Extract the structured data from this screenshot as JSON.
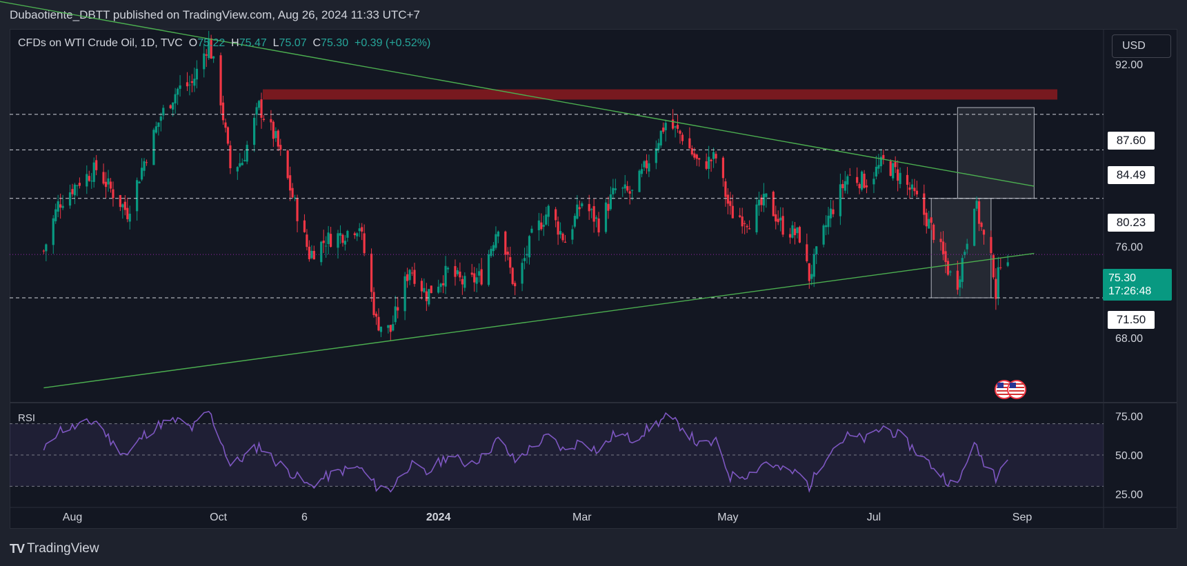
{
  "header": {
    "publisher": "Dubaotiente_DBTT published on TradingView.com, Aug 26, 2024 11:33 UTC+7"
  },
  "legend": {
    "symbol": "CFDs on WTI Crude Oil, 1D, TVC",
    "o_label": "O",
    "o_value": "75.22",
    "h_label": "H",
    "h_value": "75.47",
    "l_label": "L",
    "l_value": "75.07",
    "c_label": "C",
    "c_value": "75.30",
    "change": "+0.39 (+0.52%)"
  },
  "currency_button": "USD",
  "price_tag": {
    "price": "75.30",
    "countdown": "17:26:48"
  },
  "level_labels": [
    "87.60",
    "84.49",
    "80.23",
    "71.50"
  ],
  "rsi": {
    "label": "RSI"
  },
  "footer": {
    "brand": "TradingView"
  },
  "colors": {
    "up": "#089981",
    "down": "#f23645",
    "trendline": "#4caf50",
    "resistance_zone": "#8b1a1f",
    "rsi_line": "#7e57c2"
  },
  "chart_data": [
    {
      "type": "candlestick",
      "title": "CFDs on WTI Crude Oil, 1D, TVC",
      "x_ticks": [
        "Aug",
        "Oct",
        "6",
        "2024",
        "Mar",
        "May",
        "Jul",
        "Sep"
      ],
      "y_ticks": [
        92.0,
        76.0,
        68.0
      ],
      "y_tick_labels": [
        "92.00",
        "76.00",
        "68.00"
      ],
      "ylim": [
        62.3,
        95.1
      ],
      "horizontal_levels": [
        87.6,
        84.49,
        80.23,
        71.5
      ],
      "last_price": 75.3,
      "resistance_zone": [
        88.9,
        89.8
      ],
      "descending_trendline": {
        "from": [
          "2023-06-08",
          98.4
        ],
        "to": [
          "2024-09-06",
          81.3
        ]
      },
      "ascending_trendline": {
        "from": [
          "2023-07-20",
          63.6
        ],
        "to": [
          "2024-09-06",
          75.4
        ]
      },
      "boxes": [
        {
          "from": "2024-08-05",
          "to": "2024-09-06",
          "low": 80.23,
          "high": 88.2
        },
        {
          "from": "2024-07-25",
          "to": "2024-08-19",
          "low": 71.5,
          "high": 80.23
        }
      ],
      "close_series": [
        [
          "2023-07-20",
          75.6
        ],
        [
          "2023-07-26",
          79.7
        ],
        [
          "2023-08-03",
          81.6
        ],
        [
          "2023-08-11",
          82.8
        ],
        [
          "2023-08-18",
          80.7
        ],
        [
          "2023-08-24",
          79.0
        ],
        [
          "2023-08-31",
          83.5
        ],
        [
          "2023-09-07",
          87.5
        ],
        [
          "2023-09-14",
          89.8
        ],
        [
          "2023-09-20",
          90.3
        ],
        [
          "2023-09-27",
          94.0
        ],
        [
          "2023-10-02",
          88.9
        ],
        [
          "2023-10-06",
          82.9
        ],
        [
          "2023-10-11",
          83.5
        ],
        [
          "2023-10-18",
          88.3
        ],
        [
          "2023-10-25",
          85.4
        ],
        [
          "2023-11-01",
          80.4
        ],
        [
          "2023-11-08",
          75.3
        ],
        [
          "2023-11-15",
          76.6
        ],
        [
          "2023-11-22",
          77.1
        ],
        [
          "2023-11-29",
          77.9
        ],
        [
          "2023-12-06",
          69.4
        ],
        [
          "2023-12-12",
          68.6
        ],
        [
          "2023-12-20",
          74.2
        ],
        [
          "2023-12-27",
          71.8
        ],
        [
          "2024-01-05",
          73.8
        ],
        [
          "2024-01-12",
          72.7
        ],
        [
          "2024-01-19",
          73.4
        ],
        [
          "2024-01-26",
          78.0
        ],
        [
          "2024-02-02",
          72.3
        ],
        [
          "2024-02-09",
          76.8
        ],
        [
          "2024-02-16",
          79.2
        ],
        [
          "2024-02-23",
          76.5
        ],
        [
          "2024-03-01",
          79.9
        ],
        [
          "2024-03-08",
          78.0
        ],
        [
          "2024-03-15",
          81.0
        ],
        [
          "2024-03-22",
          80.6
        ],
        [
          "2024-03-28",
          83.2
        ],
        [
          "2024-04-05",
          86.9
        ],
        [
          "2024-04-12",
          85.7
        ],
        [
          "2024-04-19",
          83.1
        ],
        [
          "2024-04-26",
          83.8
        ],
        [
          "2024-05-02",
          79.0
        ],
        [
          "2024-05-10",
          78.3
        ],
        [
          "2024-05-17",
          80.1
        ],
        [
          "2024-05-24",
          77.7
        ],
        [
          "2024-05-31",
          76.9
        ],
        [
          "2024-06-04",
          73.3
        ],
        [
          "2024-06-12",
          78.5
        ],
        [
          "2024-06-20",
          82.2
        ],
        [
          "2024-06-28",
          81.7
        ],
        [
          "2024-07-05",
          83.4
        ],
        [
          "2024-07-12",
          82.2
        ],
        [
          "2024-07-19",
          80.1
        ],
        [
          "2024-07-26",
          77.2
        ],
        [
          "2024-08-02",
          73.5
        ],
        [
          "2024-08-05",
          72.9
        ],
        [
          "2024-08-09",
          76.8
        ],
        [
          "2024-08-12",
          80.1
        ],
        [
          "2024-08-16",
          76.7
        ],
        [
          "2024-08-20",
          74.0
        ],
        [
          "2024-08-21",
          71.9
        ],
        [
          "2024-08-23",
          74.9
        ],
        [
          "2024-08-26",
          75.3
        ]
      ]
    },
    {
      "type": "line",
      "title": "RSI",
      "y_ticks": [
        75.0,
        50.0,
        25.0
      ],
      "y_tick_labels": [
        "75.00",
        "50.00",
        "25.00"
      ],
      "ylim": [
        20,
        80
      ],
      "band": [
        30,
        70
      ],
      "series": [
        {
          "values": [
            [
              "2023-07-20",
              52
            ],
            [
              "2023-07-26",
              66
            ],
            [
              "2023-08-03",
              68
            ],
            [
              "2023-08-11",
              72
            ],
            [
              "2023-08-18",
              57
            ],
            [
              "2023-08-24",
              50
            ],
            [
              "2023-08-31",
              63
            ],
            [
              "2023-09-07",
              70
            ],
            [
              "2023-09-14",
              72
            ],
            [
              "2023-09-20",
              67
            ],
            [
              "2023-09-27",
              78
            ],
            [
              "2023-10-02",
              60
            ],
            [
              "2023-10-06",
              43
            ],
            [
              "2023-10-11",
              48
            ],
            [
              "2023-10-18",
              56
            ],
            [
              "2023-10-25",
              46
            ],
            [
              "2023-11-01",
              38
            ],
            [
              "2023-11-08",
              30
            ],
            [
              "2023-11-15",
              36
            ],
            [
              "2023-11-22",
              40
            ],
            [
              "2023-11-29",
              42
            ],
            [
              "2023-12-06",
              30
            ],
            [
              "2023-12-12",
              28
            ],
            [
              "2023-12-20",
              44
            ],
            [
              "2023-12-27",
              38
            ],
            [
              "2024-01-05",
              50
            ],
            [
              "2024-01-12",
              45
            ],
            [
              "2024-01-19",
              48
            ],
            [
              "2024-01-26",
              60
            ],
            [
              "2024-02-02",
              46
            ],
            [
              "2024-02-09",
              55
            ],
            [
              "2024-02-16",
              62
            ],
            [
              "2024-02-23",
              52
            ],
            [
              "2024-03-01",
              60
            ],
            [
              "2024-03-08",
              52
            ],
            [
              "2024-03-15",
              64
            ],
            [
              "2024-03-22",
              60
            ],
            [
              "2024-03-28",
              66
            ],
            [
              "2024-04-05",
              74
            ],
            [
              "2024-04-12",
              68
            ],
            [
              "2024-04-19",
              56
            ],
            [
              "2024-04-26",
              58
            ],
            [
              "2024-05-02",
              36
            ],
            [
              "2024-05-10",
              38
            ],
            [
              "2024-05-17",
              46
            ],
            [
              "2024-05-24",
              40
            ],
            [
              "2024-05-31",
              38
            ],
            [
              "2024-06-04",
              30
            ],
            [
              "2024-06-12",
              52
            ],
            [
              "2024-06-20",
              62
            ],
            [
              "2024-06-28",
              60
            ],
            [
              "2024-07-05",
              68
            ],
            [
              "2024-07-12",
              62
            ],
            [
              "2024-07-19",
              52
            ],
            [
              "2024-07-26",
              42
            ],
            [
              "2024-08-02",
              32
            ],
            [
              "2024-08-05",
              30
            ],
            [
              "2024-08-09",
              48
            ],
            [
              "2024-08-12",
              56
            ],
            [
              "2024-08-16",
              46
            ],
            [
              "2024-08-20",
              40
            ],
            [
              "2024-08-21",
              36
            ],
            [
              "2024-08-23",
              45
            ],
            [
              "2024-08-26",
              48
            ]
          ]
        }
      ]
    }
  ]
}
